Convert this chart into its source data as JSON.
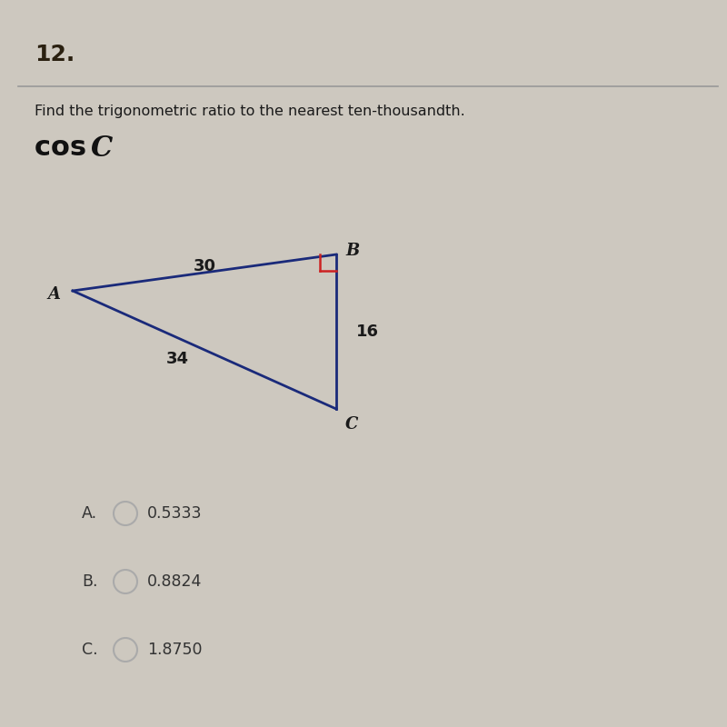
{
  "question_number": "12.",
  "instruction": "Find the trigonometric ratio to the nearest ten-thousandth.",
  "expression": "cos C",
  "side_labels": {
    "AB": "30",
    "BC": "16",
    "AC": "34"
  },
  "vertex_labels": {
    "A": "A",
    "B": "B",
    "C": "C"
  },
  "triangle_color": "#1a2a7a",
  "right_angle_color": "#cc2222",
  "choices": [
    {
      "label": "A.",
      "value": "0.5333"
    },
    {
      "label": "B.",
      "value": "0.8824"
    },
    {
      "label": "C.",
      "value": "1.8750"
    }
  ],
  "bg_color": "#cdc8bf",
  "text_color": "#1a1a1a",
  "choice_text_color": "#333333",
  "separator_color": "#999999",
  "question_num_color": "#2a2010"
}
